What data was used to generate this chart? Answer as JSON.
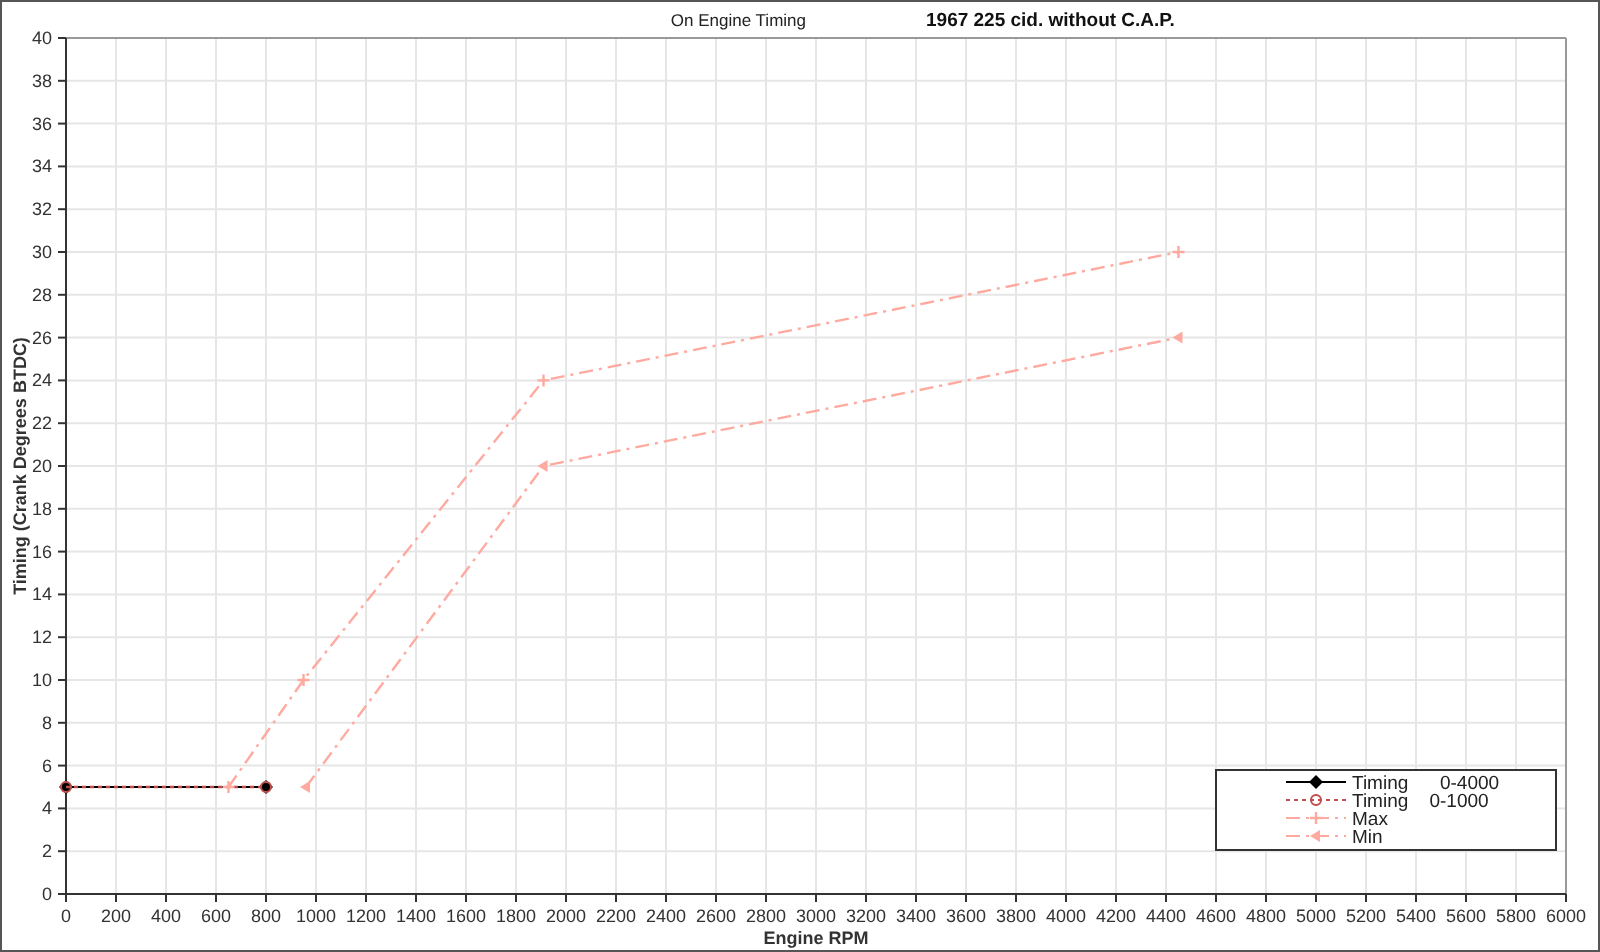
{
  "chart_data": {
    "type": "line",
    "title": "1967 225 cid. without C.A.P.",
    "subtitle": "On Engine Timing",
    "xlabel": "Engine RPM",
    "ylabel": "Timing (Crank Degrees BTDC)",
    "xlim": [
      0,
      6000
    ],
    "xticks": [
      0,
      200,
      400,
      600,
      800,
      1000,
      1200,
      1400,
      1600,
      1800,
      2000,
      2200,
      2400,
      2600,
      2800,
      3000,
      3200,
      3400,
      3600,
      3800,
      4000,
      4200,
      4400,
      4600,
      4800,
      5000,
      5200,
      5400,
      5600,
      5800,
      6000
    ],
    "ylim": [
      0,
      40
    ],
    "yticks": [
      0,
      2,
      4,
      6,
      8,
      10,
      12,
      14,
      16,
      18,
      20,
      22,
      24,
      26,
      28,
      30,
      32,
      34,
      36,
      38,
      40
    ],
    "grid": true,
    "legend": "bottom right",
    "series": [
      {
        "name": "Timing      0-4000",
        "color": "#000000",
        "x": [
          0,
          800
        ],
        "values": [
          5,
          5
        ],
        "marker": "diamond",
        "line_style": "solid"
      },
      {
        "name": "Timing    0-1000",
        "color": "#c0504d",
        "x": [
          0,
          800
        ],
        "values": [
          5,
          5
        ],
        "marker": "circle",
        "line_style": "dotted"
      },
      {
        "name": "Max",
        "color": "#ffaaa0",
        "x": [
          650,
          950,
          1910,
          4450
        ],
        "values": [
          5,
          10,
          24,
          30
        ],
        "marker": "cross",
        "line_style": "dashed"
      },
      {
        "name": "Min",
        "color": "#ffaaa0",
        "x": [
          960,
          1910,
          4450
        ],
        "values": [
          5,
          20,
          26
        ],
        "marker": "triangle",
        "line_style": "dashed"
      }
    ]
  }
}
